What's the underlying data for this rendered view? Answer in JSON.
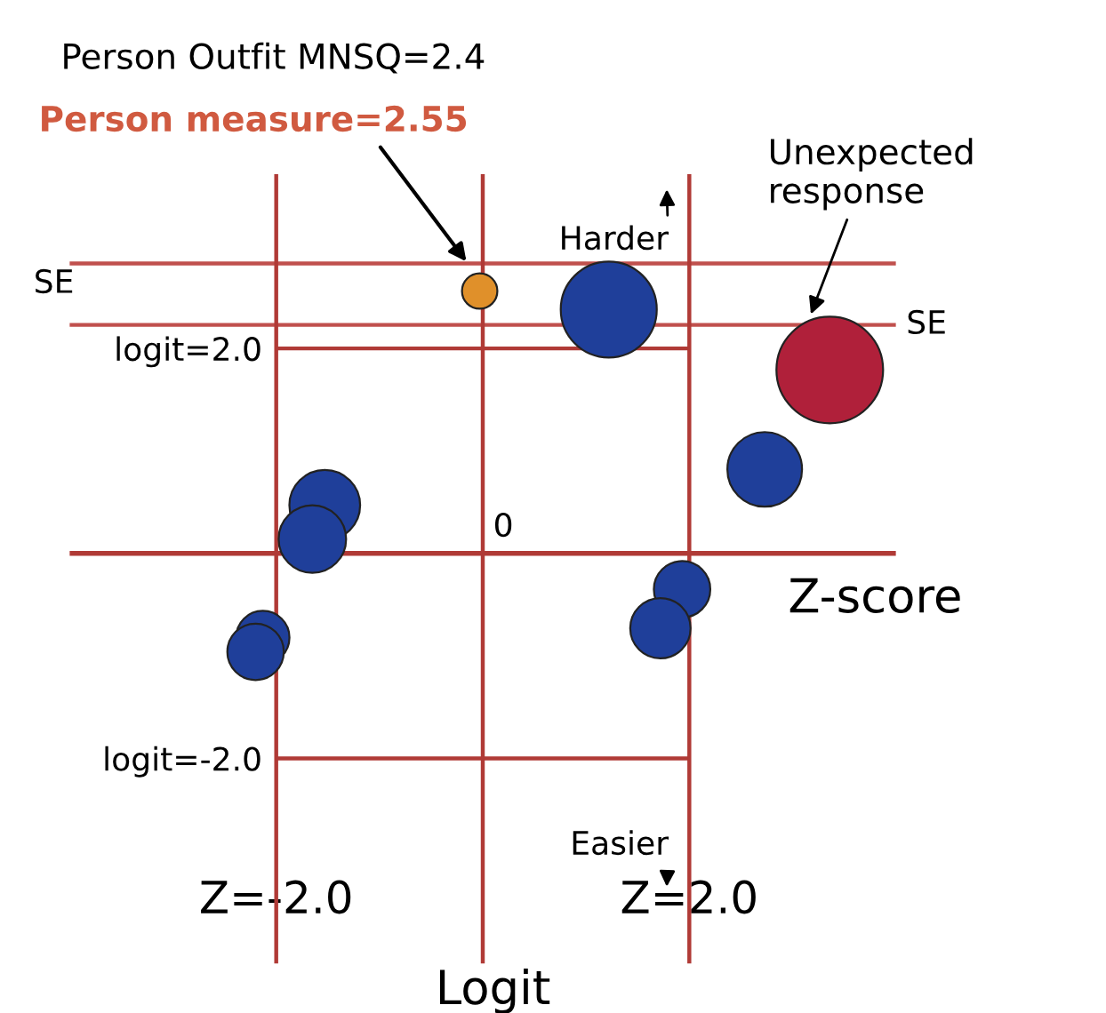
{
  "chart_data": {
    "type": "bubble",
    "title": "Person Outfit MNSQ=2.4",
    "subtitle": "Person measure=2.55",
    "xlabel": "Z-score",
    "x": [
      -0.03,
      1.22,
      3.36,
      2.73,
      -1.53,
      -1.65,
      1.93,
      1.72,
      -2.13,
      -2.2
    ],
    "series": [
      {
        "colors": [
          "#e0902a",
          "#1f3f9a",
          "#b0203a",
          "#1f3f9a",
          "#1f3f9a",
          "#1f3f9a",
          "#1f3f9a",
          "#1f3f9a",
          "#1f3f9a",
          "#1f3f9a"
        ],
        "values": [
          2.56,
          2.38,
          1.79,
          0.82,
          0.47,
          0.14,
          -0.35,
          -0.73,
          -0.82,
          -0.96
        ],
        "sizes": [
          0.11,
          0.81,
          1,
          0.49,
          0.44,
          0.4,
          0.28,
          0.32,
          0.25,
          0.28
        ]
      }
    ],
    "xlim": [
      -4.0,
      4.0
    ],
    "ylim": [
      -4.0,
      3.7
    ],
    "xticks": [
      {
        "value": -2.0,
        "label": "Z=-2.0"
      },
      {
        "value": 2.0,
        "label": "Z=2.0"
      }
    ],
    "yticks": [
      {
        "value": 2.0,
        "label": "logit=2.0"
      },
      {
        "value": -2.0,
        "label": "logit=-2.0"
      }
    ],
    "ref_lines": [
      {
        "axis": "y",
        "value": 2.83,
        "label": "SE",
        "color": "#c0504d"
      },
      {
        "axis": "y",
        "value": 2.23,
        "label": "SE",
        "color": "#c0504d"
      },
      {
        "axis": "y",
        "value": 2.0,
        "color": "#b03a36"
      },
      {
        "axis": "x",
        "value": -2.0,
        "color": "#b03a36"
      },
      {
        "axis": "y",
        "value": -2.0,
        "color": "#b03a36"
      },
      {
        "axis": "x",
        "value": 2.0,
        "color": "#b03a36"
      },
      {
        "axis": "x",
        "value": 0,
        "color": "#b03a36"
      },
      {
        "axis": "y",
        "value": 0,
        "color": "#b03a36"
      }
    ],
    "annotations": [
      {
        "text": "0",
        "x": 0,
        "y": 0
      },
      "Harder",
      "Easier",
      {
        "text": "Unexpected response",
        "x": 3.16,
        "y": 2.29
      },
      "Logit"
    ]
  }
}
